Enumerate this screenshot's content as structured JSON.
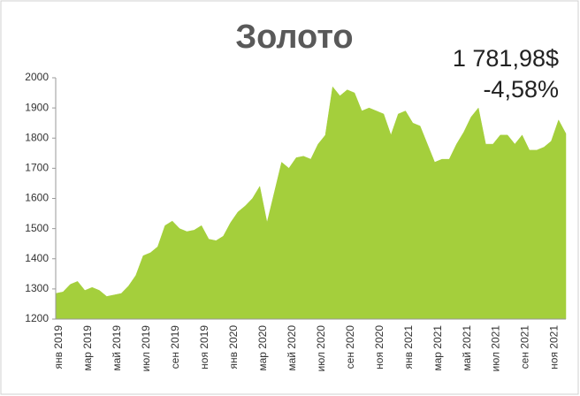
{
  "chart_data": {
    "type": "area",
    "title": "Золото",
    "annotations": [
      "1 781,98$",
      "-4,58%"
    ],
    "color": "#a4cf3c",
    "categories": [
      "янв 2019",
      null,
      null,
      null,
      "мар 2019",
      null,
      null,
      null,
      "май 2019",
      null,
      null,
      null,
      "июл 2019",
      null,
      null,
      null,
      "сен 2019",
      null,
      null,
      null,
      "ноя 2019",
      null,
      null,
      null,
      "янв 2020",
      null,
      null,
      null,
      "мар 2020",
      null,
      null,
      null,
      "май 2020",
      null,
      null,
      null,
      "июл 2020",
      null,
      null,
      null,
      "сен 2020",
      null,
      null,
      null,
      "ноя 2020",
      null,
      null,
      null,
      "янв 2021",
      null,
      null,
      null,
      "мар 2021",
      null,
      null,
      null,
      "май 2021",
      null,
      null,
      null,
      "июл 2021",
      null,
      null,
      null,
      "сен 2021",
      null,
      null,
      null,
      "ноя 2021",
      null,
      null
    ],
    "values": [
      1285,
      1290,
      1315,
      1325,
      1295,
      1305,
      1295,
      1275,
      1280,
      1285,
      1310,
      1345,
      1410,
      1420,
      1440,
      1510,
      1525,
      1500,
      1490,
      1495,
      1510,
      1465,
      1460,
      1475,
      1520,
      1555,
      1575,
      1600,
      1640,
      1520,
      1620,
      1720,
      1700,
      1735,
      1740,
      1730,
      1780,
      1810,
      1970,
      1940,
      1960,
      1950,
      1890,
      1900,
      1890,
      1880,
      1810,
      1880,
      1890,
      1850,
      1840,
      1780,
      1720,
      1730,
      1730,
      1780,
      1820,
      1870,
      1900,
      1780,
      1780,
      1810,
      1810,
      1780,
      1810,
      1760,
      1760,
      1770,
      1790,
      1860,
      1815
    ],
    "ylim": [
      1200,
      2000
    ],
    "yticks": [
      1200,
      1300,
      1400,
      1500,
      1600,
      1700,
      1800,
      1900,
      2000
    ]
  }
}
